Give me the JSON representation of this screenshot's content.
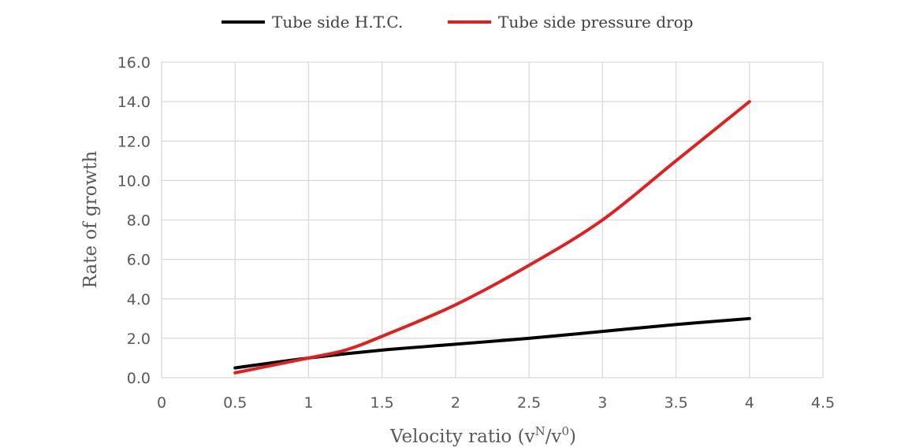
{
  "chart_data": {
    "type": "line",
    "title": "",
    "xlabel": "Velocity ratio (vN/v0)",
    "xlabel_parts": {
      "base": "Velocity ratio (v",
      "sup1": "N",
      "mid": "/v",
      "sup2": "0",
      "end": ")"
    },
    "ylabel": "Rate of growth",
    "xlim": [
      0,
      4.5
    ],
    "ylim": [
      0,
      16
    ],
    "xticks": [
      "0",
      "0.5",
      "1",
      "1.5",
      "2",
      "2.5",
      "3",
      "3.5",
      "4",
      "4.5"
    ],
    "yticks": [
      "0.0",
      "2.0",
      "4.0",
      "6.0",
      "8.0",
      "10.0",
      "12.0",
      "14.0",
      "16.0"
    ],
    "grid": "vertical and horizontal",
    "legend_position": "top",
    "series": [
      {
        "name": "Tube side H.T.C.",
        "color": "#000000",
        "x": [
          0.5,
          1,
          1.5,
          2,
          2.5,
          3,
          3.5,
          4
        ],
        "y": [
          0.5,
          1.0,
          1.4,
          1.7,
          2.0,
          2.35,
          2.7,
          3.0
        ]
      },
      {
        "name": "Tube side pressure drop",
        "color": "#e02020",
        "x": [
          0.5,
          1,
          1.25,
          1.5,
          2,
          2.5,
          3,
          3.5,
          4
        ],
        "y": [
          0.25,
          1.0,
          1.4,
          2.1,
          3.7,
          5.7,
          8.0,
          11.0,
          14.0
        ]
      }
    ]
  }
}
